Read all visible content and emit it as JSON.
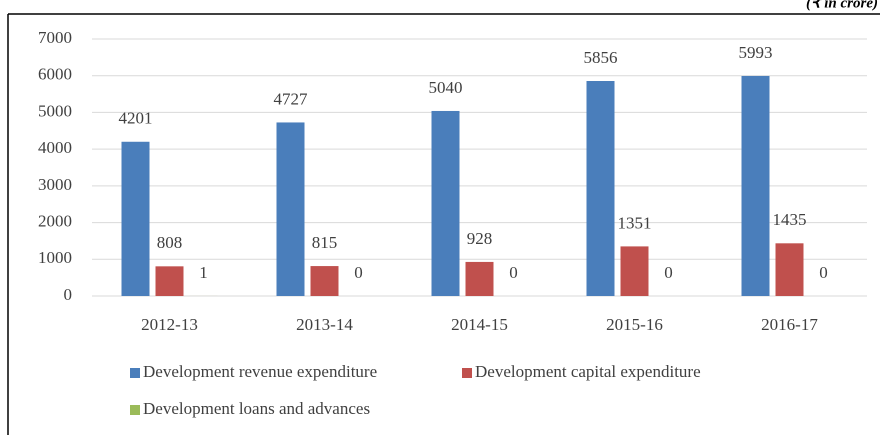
{
  "chart_data": {
    "type": "bar",
    "annotation": "(₹ in crore)",
    "categories": [
      "2012-13",
      "2013-14",
      "2014-15",
      "2015-16",
      "2016-17"
    ],
    "series": [
      {
        "name": "Development revenue expenditure",
        "color": "#4a7ebb",
        "values": [
          4201,
          4727,
          5040,
          5856,
          5993
        ]
      },
      {
        "name": "Development capital expenditure",
        "color": "#c0504d",
        "values": [
          808,
          815,
          928,
          1351,
          1435
        ]
      },
      {
        "name": "Development loans and advances",
        "color": "#9bbb59",
        "values": [
          1,
          0,
          0,
          0,
          0
        ]
      }
    ],
    "ylim": [
      0,
      7000
    ],
    "yticks": [
      0,
      1000,
      2000,
      3000,
      4000,
      5000,
      6000,
      7000
    ],
    "grid": true,
    "legend": "bottom"
  }
}
